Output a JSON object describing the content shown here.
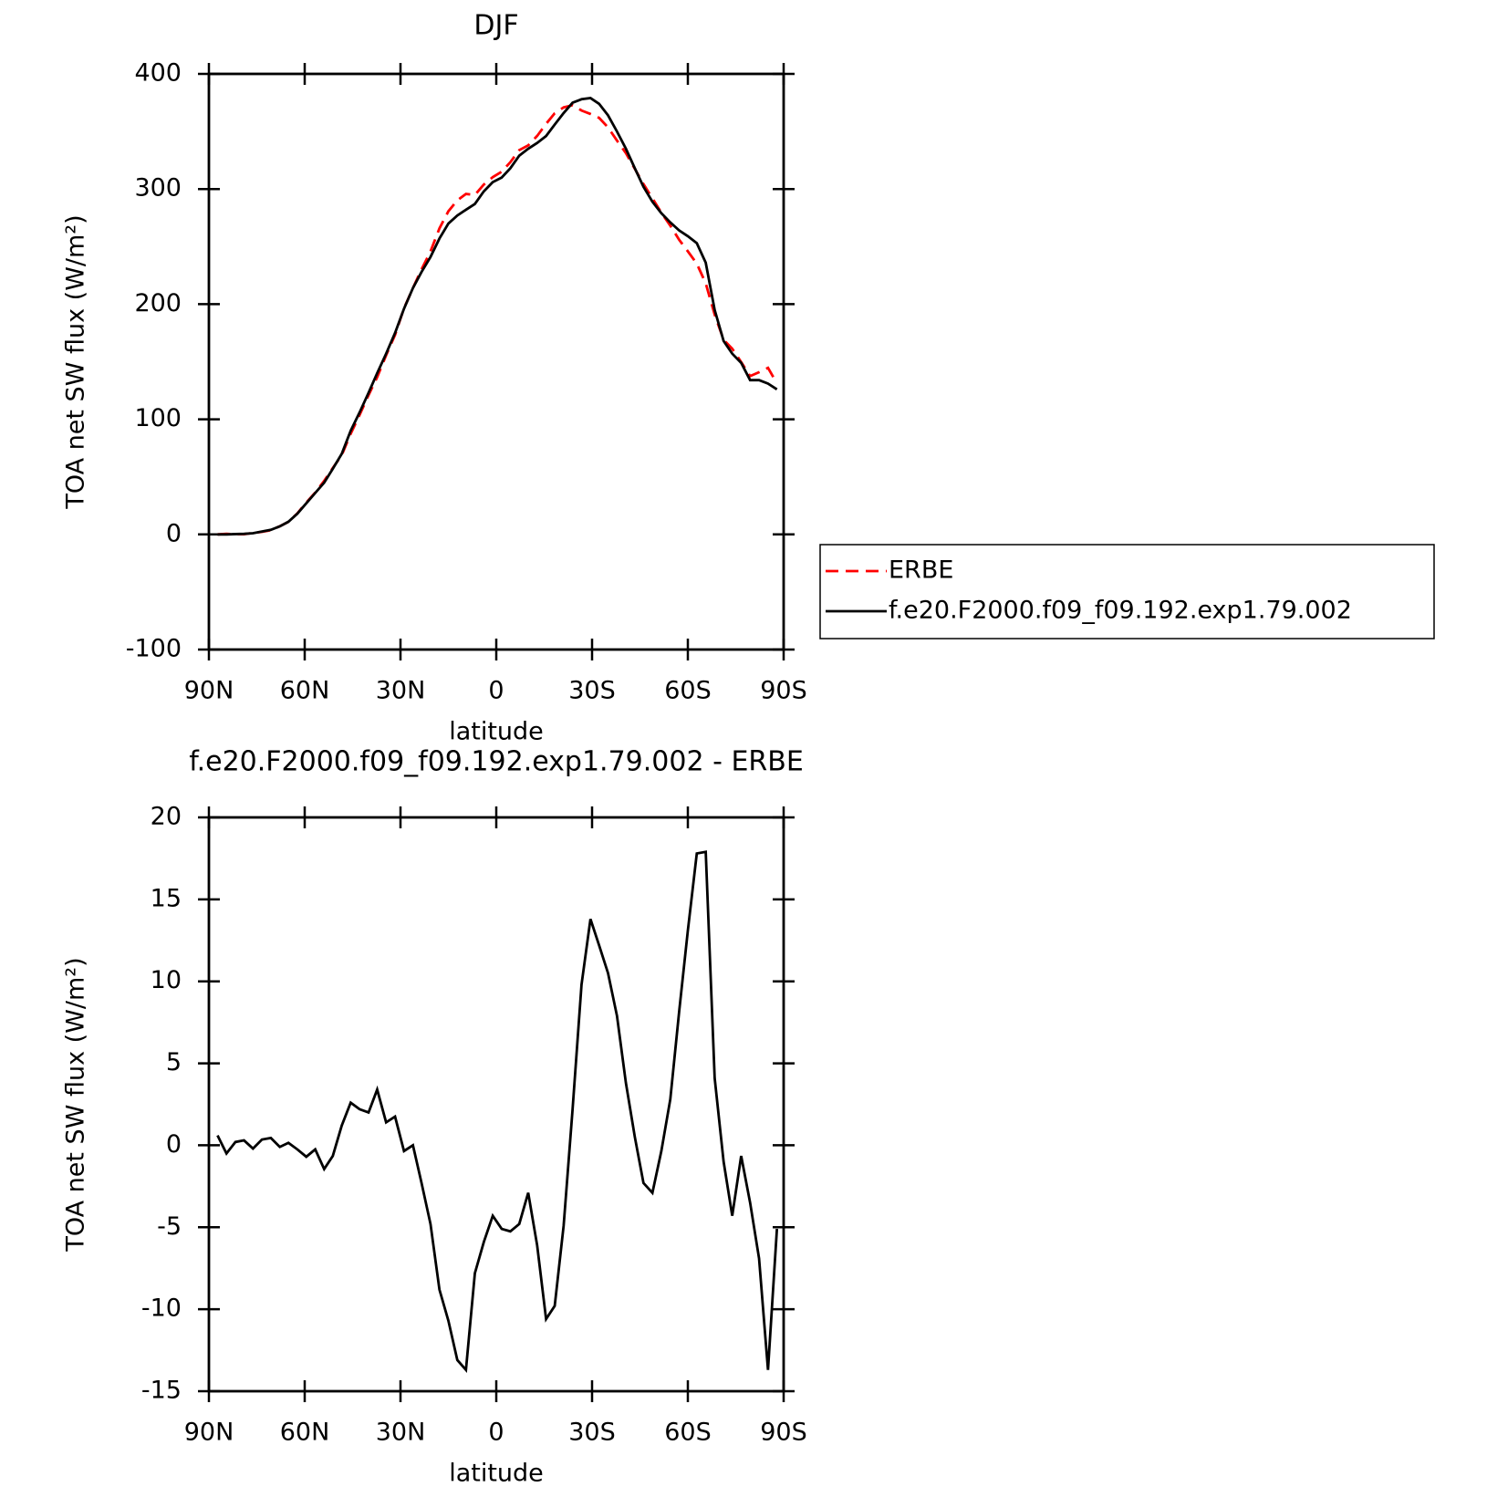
{
  "chart_data": [
    {
      "type": "line",
      "title": "DJF",
      "xlabel": "latitude",
      "ylabel": "TOA net SW flux (W/m²)",
      "xlim": [
        90,
        -90
      ],
      "xticks": [
        {
          "value": 90,
          "label": "90N"
        },
        {
          "value": 60,
          "label": "60N"
        },
        {
          "value": 30,
          "label": "30N"
        },
        0,
        {
          "value": -30,
          "label": "30S"
        },
        {
          "value": -60,
          "label": "60S"
        },
        {
          "value": -90,
          "label": "90S"
        }
      ],
      "ylim": [
        -100,
        400
      ],
      "yticks": [
        -100,
        0,
        100,
        200,
        300,
        400
      ],
      "legend": "right",
      "x": [
        87.3,
        84.5,
        81.7,
        79.0,
        76.2,
        73.4,
        70.6,
        67.8,
        65.1,
        62.3,
        59.5,
        56.7,
        53.9,
        51.2,
        48.4,
        45.6,
        42.8,
        40.0,
        37.3,
        34.5,
        31.7,
        28.9,
        26.1,
        23.4,
        20.6,
        17.8,
        15.0,
        12.2,
        9.5,
        6.7,
        3.9,
        1.1,
        -1.7,
        -4.4,
        -7.2,
        -10.0,
        -12.8,
        -15.6,
        -18.3,
        -21.1,
        -23.9,
        -26.7,
        -29.5,
        -32.2,
        -35.0,
        -37.8,
        -40.6,
        -43.4,
        -46.1,
        -48.9,
        -51.7,
        -54.5,
        -57.3,
        -60.0,
        -62.8,
        -65.6,
        -68.4,
        -71.2,
        -73.9,
        -76.7,
        -79.5,
        -82.3,
        -85.1,
        -87.9
      ],
      "series": [
        {
          "name": "ERBE",
          "color": "#ff0000",
          "dashed": true,
          "values": [
            0,
            0.5,
            0.1,
            0.2,
            1.2,
            2.2,
            3.6,
            7.1,
            10.9,
            18.3,
            27.7,
            36.3,
            46.5,
            57.7,
            68.8,
            87.4,
            103.8,
            121,
            136.6,
            155.6,
            173.3,
            196.4,
            214,
            230.3,
            245.8,
            265.8,
            280.7,
            290.1,
            295.7,
            294.8,
            303.9,
            310.3,
            315.1,
            323.3,
            333.8,
            337.9,
            346.1,
            356.6,
            365.8,
            370.9,
            372.8,
            368.2,
            365.2,
            361.8,
            353.5,
            342.1,
            331.2,
            317.5,
            304.3,
            291.9,
            279.4,
            268.2,
            255.8,
            245.9,
            235.2,
            218.1,
            190.9,
            169,
            161.3,
            149.7,
            137.5,
            140.9,
            144.7,
            131.1
          ]
        },
        {
          "name": "f.e20.F2000.f09_f09.192.exp1.79.002",
          "color": "#000000",
          "dashed": false,
          "values": [
            0,
            0,
            0.3,
            0.5,
            1,
            2.5,
            4,
            7,
            11,
            18,
            27,
            36,
            45,
            57,
            70,
            90,
            106,
            123,
            140,
            157,
            175,
            196,
            214,
            228,
            241,
            257,
            270,
            277,
            282,
            287,
            298,
            306,
            310,
            318,
            329,
            335,
            340,
            346,
            356,
            366,
            375,
            378,
            379,
            374,
            364,
            350,
            335,
            318,
            302,
            289,
            279,
            271,
            264,
            259,
            253,
            236,
            195,
            168,
            157,
            149,
            134,
            134,
            131,
            126
          ]
        }
      ]
    },
    {
      "type": "line",
      "title": "f.e20.F2000.f09_f09.192.exp1.79.002 - ERBE",
      "xlabel": "latitude",
      "ylabel": "TOA net SW flux (W/m²)",
      "xlim": [
        90,
        -90
      ],
      "xticks": [
        {
          "value": 90,
          "label": "90N"
        },
        {
          "value": 60,
          "label": "60N"
        },
        {
          "value": 30,
          "label": "30N"
        },
        0,
        {
          "value": -30,
          "label": "30S"
        },
        {
          "value": -60,
          "label": "60S"
        },
        {
          "value": -90,
          "label": "90S"
        }
      ],
      "ylim": [
        -15,
        20
      ],
      "yticks": [
        -15,
        -10,
        -5,
        0,
        5,
        10,
        15,
        20
      ],
      "x": [
        87.3,
        84.5,
        81.7,
        79.0,
        76.2,
        73.4,
        70.6,
        67.8,
        65.1,
        62.3,
        59.5,
        56.7,
        53.9,
        51.2,
        48.4,
        45.6,
        42.8,
        40.0,
        37.3,
        34.5,
        31.7,
        28.9,
        26.1,
        23.4,
        20.6,
        17.8,
        15.0,
        12.2,
        9.5,
        6.7,
        3.9,
        1.1,
        -1.7,
        -4.4,
        -7.2,
        -10.0,
        -12.8,
        -15.6,
        -18.3,
        -21.1,
        -23.9,
        -26.7,
        -29.5,
        -32.2,
        -35.0,
        -37.8,
        -40.6,
        -43.4,
        -46.1,
        -48.9,
        -51.7,
        -54.5,
        -57.3,
        -60.0,
        -62.8,
        -65.6,
        -68.4,
        -71.2,
        -73.9,
        -76.7,
        -79.5,
        -82.3,
        -85.1,
        -87.9
      ],
      "color": "#000000",
      "values": [
        0.6,
        -0.5,
        0.2,
        0.3,
        -0.2,
        0.35,
        0.45,
        -0.1,
        0.15,
        -0.25,
        -0.7,
        -0.25,
        -1.45,
        -0.65,
        1.2,
        2.6,
        2.2,
        2.0,
        3.4,
        1.4,
        1.75,
        -0.35,
        0,
        -2.3,
        -4.8,
        -8.8,
        -10.7,
        -13.1,
        -13.7,
        -7.8,
        -5.9,
        -4.3,
        -5.1,
        -5.25,
        -4.8,
        -2.9,
        -6.1,
        -10.6,
        -9.8,
        -4.9,
        2.2,
        9.8,
        13.8,
        12.2,
        10.5,
        7.9,
        3.8,
        0.5,
        -2.3,
        -2.9,
        -0.35,
        2.8,
        8.2,
        13.1,
        17.8,
        17.9,
        4.1,
        -1.0,
        -4.3,
        -0.65,
        -3.5,
        -6.9,
        -13.7,
        -5.1
      ]
    }
  ]
}
